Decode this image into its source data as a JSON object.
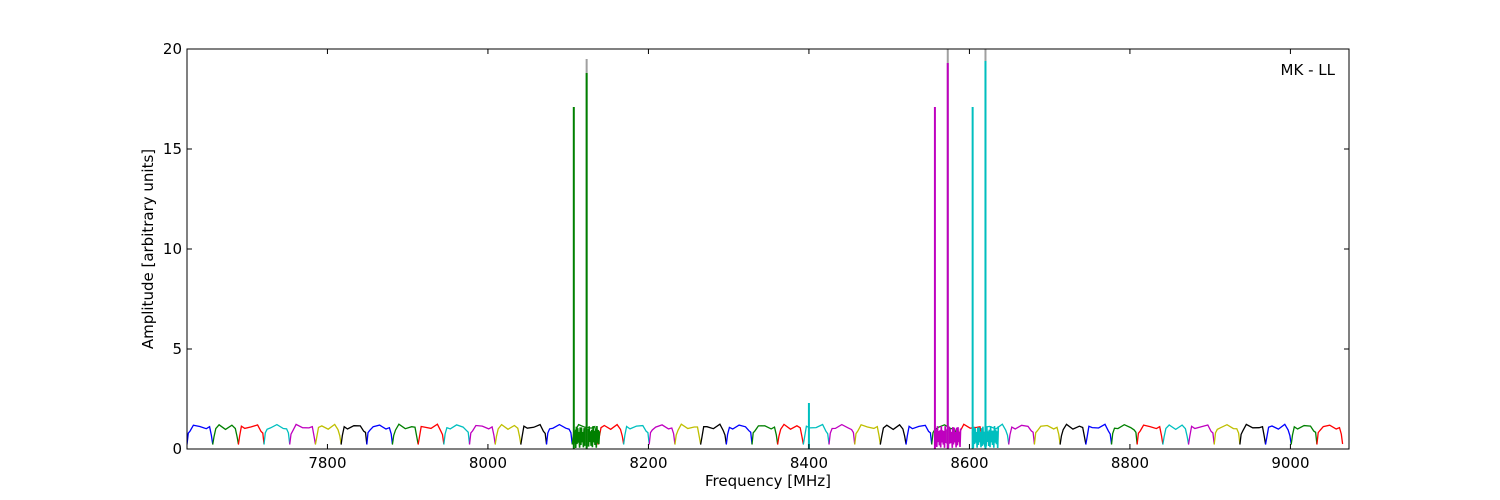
{
  "chart_data": {
    "type": "line",
    "title": "",
    "xlabel": "Frequency [MHz]",
    "ylabel": "Amplitude [arbitrary units]",
    "annotation": "MK - LL",
    "xlim": [
      7625,
      9073
    ],
    "ylim": [
      0,
      20
    ],
    "xticks": [
      7800,
      8000,
      8200,
      8400,
      8600,
      8800,
      9000
    ],
    "yticks": [
      0,
      5,
      10,
      15,
      20
    ],
    "grid": false,
    "legend": "none",
    "channel_width_mhz": 32,
    "channel_shape": {
      "x_offset_fraction": [
        0,
        0.05,
        0.12,
        0.25,
        0.5,
        0.75,
        0.88,
        0.95,
        1
      ],
      "y": [
        0.22,
        0.7,
        1.02,
        1.12,
        1.1,
        1.12,
        1.0,
        0.72,
        0.25
      ]
    },
    "channel_colors": [
      "#0000ff",
      "#008000",
      "#ff0000",
      "#00bfbf",
      "#bf00bf",
      "#bfbf00",
      "#000000"
    ],
    "channels": [
      {
        "start": 7625,
        "color": "#0000ff"
      },
      {
        "start": 7657,
        "color": "#008000"
      },
      {
        "start": 7689,
        "color": "#ff0000"
      },
      {
        "start": 7721,
        "color": "#00bfbf"
      },
      {
        "start": 7753,
        "color": "#bf00bf"
      },
      {
        "start": 7785,
        "color": "#bfbf00"
      },
      {
        "start": 7817,
        "color": "#000000"
      },
      {
        "start": 7849,
        "color": "#0000ff"
      },
      {
        "start": 7881,
        "color": "#008000"
      },
      {
        "start": 7913,
        "color": "#ff0000"
      },
      {
        "start": 7945,
        "color": "#00bfbf"
      },
      {
        "start": 7977,
        "color": "#bf00bf"
      },
      {
        "start": 8009,
        "color": "#bfbf00"
      },
      {
        "start": 8041,
        "color": "#000000"
      },
      {
        "start": 8073,
        "color": "#0000ff"
      },
      {
        "start": 8105,
        "color": "#008000"
      },
      {
        "start": 8137,
        "color": "#ff0000"
      },
      {
        "start": 8169,
        "color": "#00bfbf"
      },
      {
        "start": 8201,
        "color": "#bf00bf"
      },
      {
        "start": 8233,
        "color": "#bfbf00"
      },
      {
        "start": 8265,
        "color": "#000000"
      },
      {
        "start": 8297,
        "color": "#0000ff"
      },
      {
        "start": 8329,
        "color": "#008000"
      },
      {
        "start": 8361,
        "color": "#ff0000"
      },
      {
        "start": 8393,
        "color": "#00bfbf"
      },
      {
        "start": 8425,
        "color": "#bf00bf"
      },
      {
        "start": 8457,
        "color": "#bfbf00"
      },
      {
        "start": 8489,
        "color": "#000000"
      },
      {
        "start": 8521,
        "color": "#0000ff"
      },
      {
        "start": 8553,
        "color": "#008000"
      },
      {
        "start": 8585,
        "color": "#ff0000"
      },
      {
        "start": 8617,
        "color": "#00bfbf"
      },
      {
        "start": 8649,
        "color": "#bf00bf"
      },
      {
        "start": 8681,
        "color": "#bfbf00"
      },
      {
        "start": 8713,
        "color": "#000000"
      },
      {
        "start": 8745,
        "color": "#0000ff"
      },
      {
        "start": 8777,
        "color": "#008000"
      },
      {
        "start": 8809,
        "color": "#ff0000"
      },
      {
        "start": 8841,
        "color": "#00bfbf"
      },
      {
        "start": 8873,
        "color": "#bf00bf"
      },
      {
        "start": 8905,
        "color": "#bfbf00"
      },
      {
        "start": 8937,
        "color": "#000000"
      },
      {
        "start": 8969,
        "color": "#0000ff"
      },
      {
        "start": 9001,
        "color": "#008000"
      },
      {
        "start": 9033,
        "color": "#ff0000"
      }
    ],
    "spikes": [
      {
        "x": 8107,
        "y": 17.1,
        "color": "#008000"
      },
      {
        "x": 8123,
        "y": 19.5,
        "color": "#a0a0a0"
      },
      {
        "x": 8123,
        "y": 18.8,
        "color": "#008000"
      },
      {
        "x": 8400,
        "y": 2.3,
        "color": "#00bfbf"
      },
      {
        "x": 8557,
        "y": 17.1,
        "color": "#bf00bf"
      },
      {
        "x": 8573,
        "y": 20.0,
        "color": "#a0a0a0"
      },
      {
        "x": 8573,
        "y": 19.3,
        "color": "#bf00bf"
      },
      {
        "x": 8604,
        "y": 17.1,
        "color": "#00bfbf"
      },
      {
        "x": 8620,
        "y": 20.0,
        "color": "#a0a0a0"
      },
      {
        "x": 8620,
        "y": 19.4,
        "color": "#00bfbf"
      }
    ],
    "noisy_segments": [
      {
        "x0": 8107,
        "x1": 8139,
        "color": "#008000",
        "ymin": 0.2,
        "ymax": 1.0
      },
      {
        "x0": 8557,
        "x1": 8589,
        "color": "#bf00bf",
        "ymin": 0.2,
        "ymax": 1.0
      },
      {
        "x0": 8604,
        "x1": 8636,
        "color": "#00bfbf",
        "ymin": 0.2,
        "ymax": 1.0
      }
    ]
  }
}
